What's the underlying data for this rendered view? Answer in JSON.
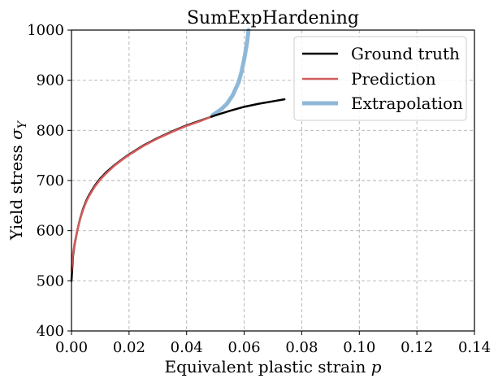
{
  "chart_data": {
    "type": "line",
    "title": "SumExpHardening",
    "xlabel": "Equivalent plastic strain p",
    "xlabel_text": "Equivalent plastic strain",
    "xlabel_symbol": "p",
    "ylabel": "Yield stress σY",
    "ylabel_text": "Yield stress",
    "ylabel_symbol": "σ",
    "ylabel_subscript": "Y",
    "xlim": [
      0.0,
      0.14
    ],
    "ylim": [
      400,
      1000
    ],
    "xticks": [
      "0.00",
      "0.02",
      "0.04",
      "0.06",
      "0.08",
      "0.10",
      "0.12",
      "0.14"
    ],
    "yticks": [
      "400",
      "500",
      "600",
      "700",
      "800",
      "900",
      "1000"
    ],
    "grid": true,
    "legend_position": "top-right",
    "series": [
      {
        "name": "Ground truth",
        "color": "#000000",
        "x": [
          0.0,
          0.0005,
          0.001,
          0.002,
          0.003,
          0.004,
          0.005,
          0.006,
          0.008,
          0.01,
          0.012,
          0.015,
          0.018,
          0.02,
          0.025,
          0.03,
          0.035,
          0.04,
          0.045,
          0.05,
          0.055,
          0.06,
          0.065,
          0.07,
          0.074
        ],
        "y": [
          500,
          548,
          570,
          600,
          624,
          643,
          658,
          670,
          689,
          704,
          716,
          731,
          744,
          752,
          770,
          785,
          798,
          810,
          820,
          830,
          839,
          847,
          853,
          858,
          862
        ]
      },
      {
        "name": "Prediction",
        "color": "#d45c5c",
        "x": [
          0.0,
          0.0005,
          0.001,
          0.002,
          0.003,
          0.004,
          0.005,
          0.006,
          0.008,
          0.01,
          0.012,
          0.015,
          0.018,
          0.02,
          0.025,
          0.03,
          0.035,
          0.04,
          0.045,
          0.048
        ],
        "y": [
          520,
          552,
          572,
          600,
          623,
          641,
          656,
          668,
          687,
          702,
          714,
          730,
          743,
          751,
          769,
          784,
          797,
          809,
          819,
          826
        ]
      },
      {
        "name": "Extrapolation",
        "color": "#8db8d8",
        "x": [
          0.049,
          0.05,
          0.052,
          0.054,
          0.056,
          0.058,
          0.059,
          0.06,
          0.061,
          0.0615
        ],
        "y": [
          830,
          834,
          842,
          853,
          870,
          895,
          915,
          942,
          975,
          1000
        ]
      }
    ]
  }
}
